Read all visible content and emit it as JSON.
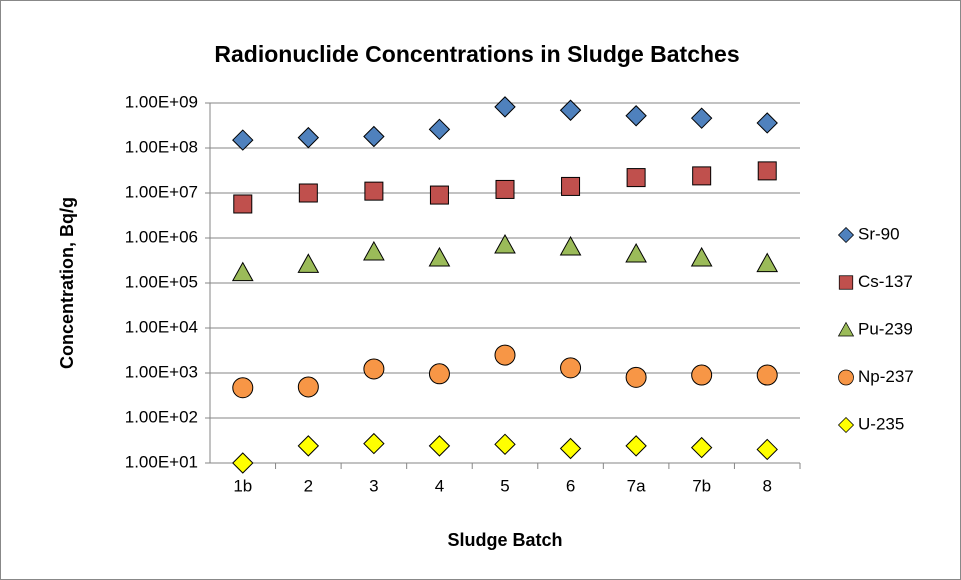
{
  "chart_data": {
    "type": "scatter",
    "title": "Radionuclide Concentrations in Sludge Batches",
    "x_label": "Sludge Batch",
    "y_label": "Concentration, Bq/g",
    "categories": [
      "1b",
      "2",
      "3",
      "4",
      "5",
      "6",
      "7a",
      "7b",
      "8"
    ],
    "y_scale": "log",
    "grid": true,
    "legend_position": "right",
    "ylim": [
      10,
      1000000000
    ],
    "yticks": [
      {
        "value": 10,
        "label": "1.00E+01"
      },
      {
        "value": 100,
        "label": "1.00E+02"
      },
      {
        "value": 1000,
        "label": "1.00E+03"
      },
      {
        "value": 10000,
        "label": "1.00E+04"
      },
      {
        "value": 100000,
        "label": "1.00E+05"
      },
      {
        "value": 1000000,
        "label": "1.00E+06"
      },
      {
        "value": 10000000,
        "label": "1.00E+07"
      },
      {
        "value": 100000000,
        "label": "1.00E+08"
      },
      {
        "value": 1000000000,
        "label": "1.00E+09"
      }
    ],
    "series": [
      {
        "name": "Sr-90",
        "color": "#4f81bd",
        "marker": "diamond",
        "values": [
          150000000,
          170000000,
          180000000,
          260000000,
          820000000,
          690000000,
          520000000,
          460000000,
          360000000
        ]
      },
      {
        "name": "Cs-137",
        "color": "#c0504d",
        "marker": "square",
        "values": [
          5700000,
          10000000,
          11000000,
          9000000,
          12000000,
          14000000,
          22000000,
          24000000,
          31000000
        ]
      },
      {
        "name": "Pu-239",
        "color": "#9bbb59",
        "marker": "triangle",
        "values": [
          170000,
          260000,
          490000,
          360000,
          700000,
          630000,
          440000,
          360000,
          270000
        ]
      },
      {
        "name": "Np-237",
        "color": "#f79646",
        "marker": "circle",
        "values": [
          470,
          490,
          1230,
          960,
          2500,
          1300,
          800,
          900,
          900
        ]
      },
      {
        "name": "U-235",
        "color": "#ffff00",
        "marker": "diamond",
        "values": [
          10,
          24,
          27,
          24,
          26,
          21,
          24,
          22,
          20
        ]
      }
    ]
  }
}
